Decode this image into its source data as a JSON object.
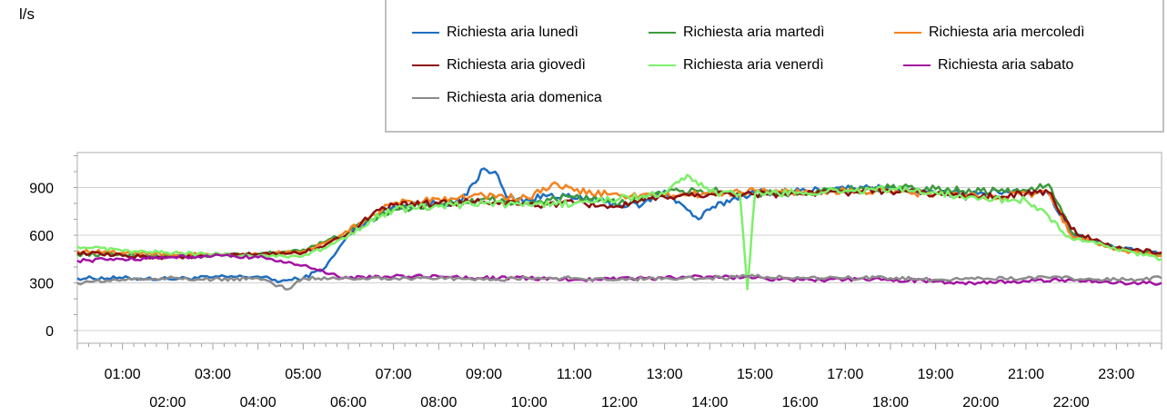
{
  "chart_data": {
    "type": "line",
    "title": "",
    "ylabel": "l/s",
    "xlabel": "",
    "ylim": [
      -80,
      1120
    ],
    "yticks": [
      0,
      300,
      600,
      900
    ],
    "ytick_labels": [
      "0",
      "300",
      "600",
      "900"
    ],
    "xlim": [
      "00:00",
      "24:00"
    ],
    "xtick_labels_row1": [
      "01:00",
      "03:00",
      "05:00",
      "07:00",
      "09:00",
      "11:00",
      "13:00",
      "15:00",
      "17:00",
      "19:00",
      "21:00",
      "23:00"
    ],
    "xtick_labels_row2": [
      "02:00",
      "04:00",
      "06:00",
      "08:00",
      "10:00",
      "12:00",
      "14:00",
      "16:00",
      "18:00",
      "20:00",
      "22:00"
    ],
    "grid": true,
    "legend_position": "top-right",
    "series": [
      {
        "name": "Richiesta aria lunedì",
        "color": "#1f6fbf",
        "x": [
          "00:00",
          "01:00",
          "02:00",
          "03:00",
          "04:00",
          "04:30",
          "05:00",
          "05:30",
          "06:00",
          "06:30",
          "07:00",
          "07:30",
          "08:00",
          "08:30",
          "09:00",
          "09:15",
          "09:30",
          "10:00",
          "10:30",
          "11:00",
          "11:30",
          "12:00",
          "12:30",
          "13:00",
          "13:30",
          "13:45",
          "14:00",
          "14:30",
          "15:00",
          "16:00",
          "17:00",
          "18:00",
          "19:00",
          "20:00",
          "21:00",
          "21:30",
          "22:00",
          "22:30",
          "23:00",
          "24:00"
        ],
        "values": [
          330,
          330,
          325,
          335,
          340,
          310,
          330,
          400,
          600,
          700,
          780,
          800,
          800,
          810,
          1020,
          1000,
          840,
          820,
          860,
          830,
          820,
          790,
          790,
          880,
          760,
          700,
          760,
          830,
          870,
          880,
          890,
          900,
          860,
          870,
          880,
          860,
          620,
          560,
          520,
          480
        ]
      },
      {
        "name": "Richiesta aria martedì",
        "color": "#3b9a3b",
        "x": [
          "00:00",
          "01:00",
          "02:00",
          "03:00",
          "04:00",
          "05:00",
          "05:30",
          "06:00",
          "06:30",
          "07:00",
          "08:00",
          "09:00",
          "10:00",
          "11:00",
          "12:00",
          "13:00",
          "14:00",
          "15:00",
          "16:00",
          "17:00",
          "18:00",
          "19:00",
          "20:00",
          "21:00",
          "21:30",
          "22:00",
          "22:30",
          "23:00",
          "24:00"
        ],
        "values": [
          480,
          480,
          470,
          470,
          480,
          510,
          560,
          620,
          700,
          760,
          800,
          830,
          800,
          840,
          800,
          870,
          880,
          860,
          870,
          890,
          900,
          890,
          880,
          880,
          920,
          620,
          560,
          520,
          480
        ]
      },
      {
        "name": "Richiesta aria mercoledì",
        "color": "#f5821f",
        "x": [
          "00:00",
          "01:00",
          "02:00",
          "03:00",
          "04:00",
          "05:00",
          "05:30",
          "06:00",
          "06:30",
          "07:00",
          "08:00",
          "09:00",
          "10:00",
          "10:30",
          "11:00",
          "12:00",
          "13:00",
          "14:00",
          "15:00",
          "16:00",
          "17:00",
          "18:00",
          "19:00",
          "20:00",
          "21:00",
          "21:30",
          "22:00",
          "22:30",
          "23:00",
          "24:00"
        ],
        "values": [
          500,
          490,
          480,
          480,
          480,
          500,
          550,
          620,
          720,
          800,
          830,
          850,
          830,
          920,
          880,
          850,
          850,
          860,
          880,
          870,
          880,
          870,
          860,
          840,
          860,
          870,
          600,
          560,
          510,
          470
        ]
      },
      {
        "name": "Richiesta aria giovedì",
        "color": "#8b1010",
        "x": [
          "00:00",
          "01:00",
          "02:00",
          "03:00",
          "04:00",
          "05:00",
          "05:30",
          "06:00",
          "06:30",
          "07:00",
          "08:00",
          "09:00",
          "10:00",
          "11:00",
          "12:00",
          "13:00",
          "14:00",
          "15:00",
          "16:00",
          "17:00",
          "18:00",
          "19:00",
          "20:00",
          "21:00",
          "21:30",
          "22:00",
          "22:30",
          "23:00",
          "24:00"
        ],
        "values": [
          490,
          470,
          460,
          470,
          480,
          490,
          540,
          610,
          720,
          790,
          800,
          810,
          790,
          800,
          780,
          840,
          860,
          860,
          860,
          870,
          880,
          860,
          840,
          860,
          870,
          640,
          570,
          520,
          490
        ]
      },
      {
        "name": "Richiesta aria venerdì",
        "color": "#7df06a",
        "x": [
          "00:00",
          "01:00",
          "02:00",
          "03:00",
          "04:00",
          "05:00",
          "05:30",
          "06:00",
          "06:30",
          "07:00",
          "08:00",
          "09:00",
          "10:00",
          "11:00",
          "12:00",
          "13:00",
          "13:30",
          "14:00",
          "14:40",
          "14:50",
          "15:00",
          "16:00",
          "17:00",
          "18:00",
          "19:00",
          "20:00",
          "21:00",
          "21:30",
          "22:00",
          "22:30",
          "23:00",
          "24:00"
        ],
        "values": [
          530,
          500,
          490,
          480,
          470,
          470,
          520,
          600,
          700,
          760,
          780,
          800,
          790,
          800,
          830,
          860,
          980,
          870,
          860,
          260,
          860,
          870,
          880,
          890,
          870,
          830,
          820,
          720,
          580,
          560,
          510,
          450
        ]
      },
      {
        "name": "Richiesta aria sabato",
        "color": "#a313a3",
        "x": [
          "00:00",
          "01:00",
          "02:00",
          "03:00",
          "04:00",
          "04:30",
          "05:00",
          "05:30",
          "06:00",
          "07:00",
          "08:00",
          "09:00",
          "10:00",
          "11:00",
          "12:00",
          "13:00",
          "14:00",
          "15:00",
          "16:00",
          "17:00",
          "18:00",
          "19:00",
          "20:00",
          "21:00",
          "22:00",
          "23:00",
          "24:00"
        ],
        "values": [
          440,
          450,
          460,
          470,
          460,
          440,
          410,
          360,
          330,
          340,
          340,
          330,
          330,
          320,
          330,
          330,
          340,
          330,
          320,
          320,
          320,
          310,
          300,
          310,
          320,
          300,
          300
        ]
      },
      {
        "name": "Richiesta aria domenica",
        "color": "#8c8c8c",
        "x": [
          "00:00",
          "01:00",
          "02:00",
          "03:00",
          "04:00",
          "04:40",
          "05:00",
          "06:00",
          "07:00",
          "08:00",
          "09:00",
          "10:00",
          "11:00",
          "12:00",
          "13:00",
          "14:00",
          "15:00",
          "16:00",
          "17:00",
          "18:00",
          "19:00",
          "20:00",
          "21:00",
          "22:00",
          "23:00",
          "24:00"
        ],
        "values": [
          300,
          320,
          330,
          320,
          330,
          260,
          330,
          330,
          330,
          330,
          320,
          330,
          330,
          320,
          330,
          330,
          340,
          330,
          330,
          330,
          320,
          330,
          330,
          330,
          320,
          330
        ]
      }
    ]
  }
}
